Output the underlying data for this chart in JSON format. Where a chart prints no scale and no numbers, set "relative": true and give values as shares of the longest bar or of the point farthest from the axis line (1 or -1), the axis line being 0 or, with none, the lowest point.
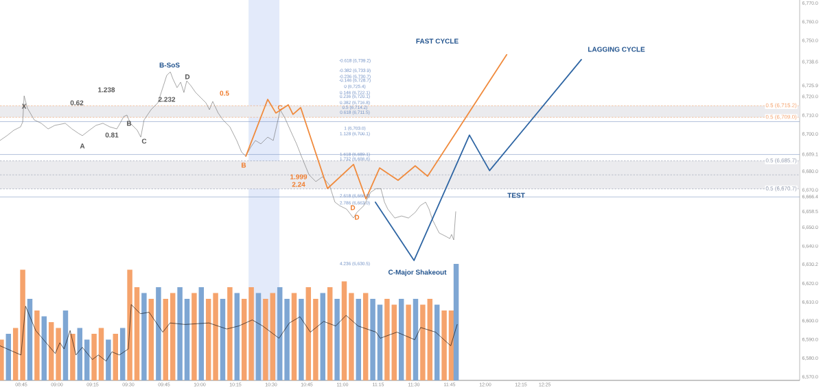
{
  "chart_data": [
    {
      "type": "line",
      "xlim": [
        8.601,
        14.202
      ],
      "ylim": [
        6568.2,
        6771.8
      ],
      "tick_labels": "y",
      "yticks": [
        {
          "value": 6570,
          "label": "6,570.0"
        },
        {
          "value": 6580,
          "label": "6,580.0"
        },
        {
          "value": 6590,
          "label": "6,590.0"
        },
        {
          "value": 6600,
          "label": "6,600.0"
        },
        {
          "value": 6610,
          "label": "6,610.0"
        },
        {
          "value": 6620,
          "label": "6,620.0"
        },
        {
          "value": 6630.2,
          "label": "6,630.2"
        },
        {
          "value": 6640,
          "label": "6,640.0"
        },
        {
          "value": 6650,
          "label": "6,650.0"
        },
        {
          "value": 6658.5,
          "label": "6,658.5"
        },
        {
          "value": 6666.4,
          "label": "6,666.4"
        },
        {
          "value": 6670,
          "label": "6,670.0"
        },
        {
          "value": 6680,
          "label": "6,680.0"
        },
        {
          "value": 6689.1,
          "label": "6,689.1"
        },
        {
          "value": 6700,
          "label": "6,700.0"
        },
        {
          "value": 6710,
          "label": "6,710.0"
        },
        {
          "value": 6720,
          "label": "6,720.0"
        },
        {
          "value": 6725.9,
          "label": "6,725.9"
        },
        {
          "value": 6738.6,
          "label": "6,738.6"
        },
        {
          "value": 6750,
          "label": "6,750.0"
        },
        {
          "value": 6760,
          "label": "6,760.0"
        },
        {
          "value": 6770,
          "label": "6,770.0"
        }
      ],
      "bands": [
        {
          "axis": "x",
          "from": 10.342,
          "to": 10.558,
          "color": "#e3eafa"
        },
        {
          "axis": "y",
          "from": 6670.7,
          "to": 6685.7,
          "color": "#ebebee"
        },
        {
          "axis": "y",
          "from": 6709.0,
          "to": 6715.2,
          "color": "#ebebee"
        }
      ],
      "ref_lines": [
        {
          "axis": "y",
          "value": 6715.2,
          "label": "0.5 (6,715.2)",
          "color": "#f4a06a",
          "line_style": "dashed"
        },
        {
          "axis": "y",
          "value": 6709.0,
          "label": "0.5 (6,709.0)",
          "color": "#f4a06a",
          "line_style": "dashed"
        },
        {
          "axis": "y",
          "value": 6706.7,
          "color": "#7d97c2"
        },
        {
          "axis": "y",
          "value": 6689.1,
          "color": "#7d97c2"
        },
        {
          "axis": "y",
          "value": 6685.7,
          "label": "0.5 (6,685.7)",
          "color": "#8e97ab",
          "line_style": "dashed"
        },
        {
          "axis": "y",
          "value": 6678.2,
          "color": "#9aa3b5",
          "line_style": "dashed"
        },
        {
          "axis": "y",
          "value": 6670.7,
          "label": "0.5 (6,670.7)",
          "color": "#8e97ab",
          "line_style": "dashed"
        },
        {
          "axis": "y",
          "value": 6666.4,
          "color": "#7d97c2"
        }
      ],
      "series": [
        {
          "color": "#6b6b6b",
          "x": [
            8.601,
            8.65,
            8.698,
            8.745,
            8.76,
            8.77,
            8.793,
            8.841,
            8.89,
            8.938,
            8.985,
            9.058,
            9.105,
            9.153,
            9.178,
            9.227,
            9.273,
            9.322,
            9.37,
            9.419,
            9.442,
            9.467,
            9.49,
            9.514,
            9.562,
            9.587,
            9.61,
            9.659,
            9.707,
            9.746,
            9.769,
            9.794,
            9.812,
            9.841,
            9.866,
            9.889,
            9.909,
            9.937,
            9.971,
            10.019,
            10.043,
            10.068,
            10.091,
            10.129,
            10.163,
            10.211,
            10.259,
            10.293,
            10.323,
            10.356,
            10.39,
            10.428,
            10.476,
            10.515,
            10.548,
            10.563,
            10.596,
            10.645,
            10.678,
            10.716,
            10.765,
            10.813,
            10.86,
            10.908,
            10.947,
            10.98,
            11.028,
            11.077,
            11.1,
            11.149,
            11.197,
            11.235,
            11.269,
            11.294,
            11.317,
            11.366,
            11.414,
            11.462,
            11.509,
            11.544,
            11.582,
            11.606,
            11.629,
            11.677,
            11.726,
            11.751,
            11.764,
            11.779,
            11.793
          ],
          "values": [
            6696.6,
            6699.2,
            6702.1,
            6703.9,
            6706.5,
            6720.5,
            6713.9,
            6707.6,
            6705.8,
            6702.8,
            6704.7,
            6705.8,
            6702.8,
            6700.3,
            6699.2,
            6702.1,
            6704.7,
            6705.8,
            6703.9,
            6702.8,
            6705.8,
            6709.4,
            6710.2,
            6705.8,
            6702.1,
            6698.4,
            6707.6,
            6713.1,
            6716.8,
            6726,
            6731.5,
            6733.3,
            6729.6,
            6724.9,
            6727.8,
            6722.3,
            6728.5,
            6726,
            6722.3,
            6718.6,
            6716.8,
            6713.1,
            6717.5,
            6711.3,
            6707.6,
            6703.9,
            6696.6,
            6690.4,
            6688.2,
            6692.9,
            6696.6,
            6694.8,
            6698.4,
            6696.6,
            6707.6,
            6713.1,
            6708.7,
            6700.3,
            6694.8,
            6687.4,
            6678.3,
            6674.6,
            6677.2,
            6672.8,
            6663.6,
            6661.7,
            6659.9,
            6655.1,
            6658.1,
            6661.7,
            6668.9,
            6670.8,
            6670.8,
            6663.6,
            6659.9,
            6655.1,
            6656.2,
            6655.1,
            6658.1,
            6661.7,
            6663.6,
            6659.9,
            6654.4,
            6647.1,
            6645.2,
            6644.1,
            6646.3,
            6643.4,
            6658.5
          ]
        },
        {
          "color": "#f08a3c",
          "x": [
            10.323,
            10.476,
            10.533,
            10.62,
            10.653,
            10.707,
            10.895,
            11.077,
            11.164,
            11.26,
            11.389,
            11.509,
            11.596,
            12.15
          ],
          "values": [
            6688.2,
            6718.6,
            6711.3,
            6715.7,
            6710.6,
            6714.2,
            6670.9,
            6683.8,
            6665.4,
            6681.9,
            6675.3,
            6683.0,
            6677.5,
            6742.5
          ]
        },
        {
          "color": "#2e65a3",
          "x": [
            11.23,
            11.501,
            11.889,
            12.03,
            12.673
          ],
          "values": [
            6663.6,
            6632.4,
            6699.5,
            6680.5,
            6739.9
          ]
        }
      ],
      "annotations": [
        "X",
        "A",
        "B",
        "C",
        "0.62",
        "1.238",
        "0.81",
        "2.232",
        "B-SoS",
        "D",
        "0.5",
        "B",
        "C",
        "1.999",
        "2.24",
        "D",
        "D",
        "-0.618 (6,739.2)",
        "-0.382 (6,733.9)",
        "-0.236 (6,730.7)",
        "-0.146 (6,728.7)",
        "0 (6,725.4)",
        "0.146 (6,722.1)",
        "0.236 (6,720.1)",
        "0.382 (6,716.8)",
        "0.5 (6,714.2)",
        "0.618 (6,711.5)",
        "1 (6,703.0)",
        "1.128 (6,700.1)",
        "1.618 (6,689.1)",
        "1.732 (6,686.6)",
        "2.618 (6,666.8)",
        "2.786 (6,663.0)",
        "4.236 (6,630.5)",
        "FAST CYCLE",
        "LAGGING CYCLE",
        "TEST",
        "C-Major Shakeout"
      ]
    },
    {
      "type": "bar",
      "relative": true,
      "xlim": [
        8.601,
        14.202
      ],
      "tick_labels": "x",
      "xticks": [
        {
          "value": 8.75,
          "label": "08:45"
        },
        {
          "value": 9,
          "label": "09:00"
        },
        {
          "value": 9.25,
          "label": "09:15"
        },
        {
          "value": 9.5,
          "label": "09:30"
        },
        {
          "value": 9.75,
          "label": "09:45"
        },
        {
          "value": 10,
          "label": "10:00"
        },
        {
          "value": 10.25,
          "label": "10:15"
        },
        {
          "value": 10.5,
          "label": "10:30"
        },
        {
          "value": 10.75,
          "label": "10:45"
        },
        {
          "value": 11,
          "label": "11:00"
        },
        {
          "value": 11.25,
          "label": "11:15"
        },
        {
          "value": 11.5,
          "label": "11:30"
        },
        {
          "value": 11.75,
          "label": "11:45"
        },
        {
          "value": 12,
          "label": "12:00"
        },
        {
          "value": 12.25,
          "label": "12:15"
        },
        {
          "value": 12.4167,
          "label": "12:25"
        }
      ],
      "series": [
        {
          "type": "bar",
          "x": [
            8.61,
            8.66,
            8.71,
            8.76,
            8.81,
            8.86,
            8.91,
            8.96,
            9.01,
            9.06,
            9.11,
            9.16,
            9.21,
            9.26,
            9.31,
            9.36,
            9.41,
            9.46,
            9.51,
            9.56,
            9.61,
            9.66,
            9.711,
            9.761,
            9.811,
            9.861,
            9.911,
            9.961,
            10.011,
            10.061,
            10.111,
            10.161,
            10.211,
            10.261,
            10.311,
            10.361,
            10.411,
            10.461,
            10.511,
            10.561,
            10.611,
            10.661,
            10.711,
            10.761,
            10.812,
            10.862,
            10.912,
            10.962,
            11.012,
            11.062,
            11.112,
            11.162,
            11.212,
            11.262,
            11.312,
            11.362,
            11.412,
            11.462,
            11.512,
            11.562,
            11.612,
            11.662,
            11.712,
            11.762,
            11.796
          ],
          "values": [
            0.35,
            0.4,
            0.45,
            0.95,
            0.7,
            0.6,
            0.55,
            0.5,
            0.45,
            0.6,
            0.4,
            0.45,
            0.35,
            0.4,
            0.45,
            0.35,
            0.4,
            0.45,
            0.95,
            0.8,
            0.75,
            0.7,
            0.8,
            0.7,
            0.75,
            0.8,
            0.7,
            0.75,
            0.8,
            0.7,
            0.75,
            0.7,
            0.8,
            0.75,
            0.7,
            0.8,
            0.75,
            0.7,
            0.75,
            0.8,
            0.7,
            0.75,
            0.7,
            0.8,
            0.7,
            0.75,
            0.8,
            0.7,
            0.85,
            0.75,
            0.7,
            0.75,
            0.7,
            0.65,
            0.7,
            0.65,
            0.7,
            0.65,
            0.7,
            0.65,
            0.7,
            0.65,
            0.6,
            0.6,
            1
          ],
          "colors": [
            "#f5a36c",
            "#7ea6d3",
            "#f5a36c",
            "#f5a36c",
            "#7ea6d3",
            "#f5a36c",
            "#7ea6d3",
            "#f5a36c",
            "#f5a36c",
            "#7ea6d3",
            "#f5a36c",
            "#7ea6d3",
            "#7ea6d3",
            "#f5a36c",
            "#f5a36c",
            "#7ea6d3",
            "#f5a36c",
            "#7ea6d3",
            "#f5a36c",
            "#f5a36c",
            "#7ea6d3",
            "#f5a36c",
            "#7ea6d3",
            "#f5a36c",
            "#f5a36c",
            "#7ea6d3",
            "#7ea6d3",
            "#f5a36c",
            "#7ea6d3",
            "#f5a36c",
            "#f5a36c",
            "#7ea6d3",
            "#f5a36c",
            "#7ea6d3",
            "#f5a36c",
            "#f5a36c",
            "#7ea6d3",
            "#f5a36c",
            "#f5a36c",
            "#7ea6d3",
            "#7ea6d3",
            "#f5a36c",
            "#7ea6d3",
            "#f5a36c",
            "#f5a36c",
            "#7ea6d3",
            "#f5a36c",
            "#7ea6d3",
            "#f5a36c",
            "#f5a36c",
            "#7ea6d3",
            "#f5a36c",
            "#7ea6d3",
            "#7ea6d3",
            "#f5a36c",
            "#f5a36c",
            "#7ea6d3",
            "#f5a36c",
            "#7ea6d3",
            "#f5a36c",
            "#f5a36c",
            "#7ea6d3",
            "#f5a36c",
            "#f5a36c",
            "#7ea6d3"
          ]
        },
        {
          "type": "line",
          "color": "#000000",
          "x": [
            8.601,
            8.748,
            8.78,
            8.851,
            8.915,
            8.988,
            9.02,
            9.05,
            9.092,
            9.133,
            9.177,
            9.248,
            9.29,
            9.344,
            9.385,
            9.437,
            9.5,
            9.52,
            9.584,
            9.645,
            9.741,
            9.792,
            9.897,
            10.064,
            10.189,
            10.273,
            10.368,
            10.441,
            10.555,
            10.628,
            10.702,
            10.775,
            10.868,
            10.952,
            11.025,
            11.109,
            11.235,
            11.265,
            11.381,
            11.506,
            11.547,
            11.652,
            11.758,
            11.803
          ],
          "values": [
            0.297,
            0.218,
            0.637,
            0.428,
            0.336,
            0.231,
            0.323,
            0.27,
            0.428,
            0.218,
            0.284,
            0.179,
            0.218,
            0.166,
            0.245,
            0.218,
            0.27,
            0.651,
            0.572,
            0.585,
            0.414,
            0.493,
            0.48,
            0.493,
            0.441,
            0.467,
            0.519,
            0.467,
            0.362,
            0.493,
            0.546,
            0.414,
            0.506,
            0.467,
            0.558,
            0.467,
            0.414,
            0.362,
            0.414,
            0.349,
            0.454,
            0.414,
            0.297,
            0.48
          ]
        }
      ]
    }
  ]
}
